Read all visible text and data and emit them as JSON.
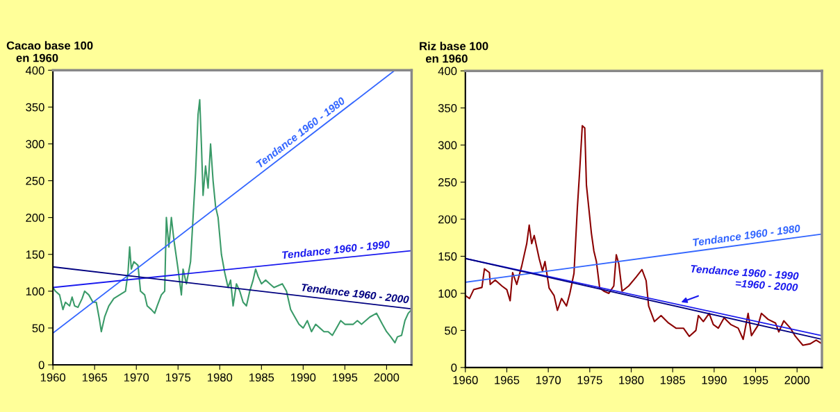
{
  "chart_data": [
    {
      "type": "line",
      "ylabel": "Cacao base 100\n   en 1960",
      "xlim": [
        1960,
        2003
      ],
      "xticks": [
        1960,
        1965,
        1970,
        1975,
        1980,
        1985,
        1990,
        1995,
        2000
      ],
      "ylim": [
        0,
        400
      ],
      "yticks": [
        0,
        50,
        100,
        150,
        200,
        250,
        300,
        350,
        400
      ],
      "grid": false,
      "legend": false,
      "series": [
        {
          "color": "#3a9a68",
          "x": [
            1960,
            1960.3,
            1960.8,
            1961.2,
            1961.5,
            1962,
            1962.3,
            1962.6,
            1963,
            1963.5,
            1963.8,
            1964.3,
            1964.8,
            1965.2,
            1965.6,
            1965.8,
            1966.2,
            1966.7,
            1967.3,
            1968,
            1968.7,
            1969,
            1969.2,
            1969.4,
            1969.7,
            1970.2,
            1970.5,
            1971,
            1971.3,
            1971.8,
            1972.2,
            1972.5,
            1973,
            1973.4,
            1973.6,
            1973.9,
            1974.2,
            1974.5,
            1975,
            1975.4,
            1975.6,
            1976,
            1976.5,
            1976.8,
            1977.1,
            1977.4,
            1977.6,
            1977.8,
            1978,
            1978.3,
            1978.6,
            1978.9,
            1979.2,
            1979.5,
            1979.8,
            1980.2,
            1980.6,
            1981,
            1981.3,
            1981.6,
            1982,
            1982.4,
            1982.8,
            1983.2,
            1983.6,
            1984,
            1984.3,
            1984.6,
            1985,
            1985.5,
            1986,
            1986.5,
            1987.5,
            1988,
            1988.5,
            1989,
            1989.5,
            1990,
            1990.5,
            1991,
            1991.5,
            1992,
            1992.5,
            1993,
            1993.5,
            1994,
            1994.5,
            1995,
            1996,
            1996.5,
            1997,
            1998,
            1998.8,
            1999.5,
            2000,
            2000.5,
            2001,
            2001.3,
            2001.8,
            2002.2,
            2002.6,
            2003
          ],
          "values": [
            105,
            100,
            95,
            75,
            85,
            80,
            92,
            80,
            78,
            90,
            100,
            95,
            85,
            85,
            60,
            45,
            65,
            80,
            90,
            95,
            100,
            125,
            160,
            130,
            140,
            135,
            100,
            95,
            80,
            75,
            70,
            80,
            95,
            100,
            200,
            160,
            200,
            170,
            130,
            95,
            130,
            110,
            140,
            200,
            260,
            340,
            360,
            300,
            230,
            270,
            240,
            300,
            250,
            215,
            200,
            150,
            125,
            105,
            115,
            80,
            110,
            100,
            85,
            80,
            100,
            115,
            130,
            120,
            110,
            115,
            110,
            105,
            110,
            100,
            75,
            65,
            55,
            50,
            60,
            45,
            55,
            50,
            45,
            45,
            40,
            50,
            60,
            55,
            55,
            60,
            55,
            65,
            70,
            55,
            45,
            38,
            30,
            38,
            40,
            60,
            70,
            75
          ]
        },
        {
          "name": "Tendance 1960 - 1980",
          "color": "#3366ff",
          "x": [
            1960,
            2001
          ],
          "values": [
            43,
            400
          ]
        },
        {
          "name": "Tendance 1960 - 1990",
          "color": "#1a1aee",
          "x": [
            1960,
            2003
          ],
          "values": [
            105,
            155
          ]
        },
        {
          "name": "Tendance 1960 - 2000",
          "color": "#000080",
          "x": [
            1960,
            2003
          ],
          "values": [
            133,
            76
          ]
        }
      ]
    },
    {
      "type": "line",
      "ylabel": "Riz base 100\n  en 1960",
      "xlim": [
        1960,
        2003
      ],
      "xticks": [
        1960,
        1965,
        1970,
        1975,
        1980,
        1985,
        1990,
        1995,
        2000
      ],
      "ylim": [
        0,
        400
      ],
      "yticks": [
        0,
        50,
        100,
        150,
        200,
        250,
        300,
        350,
        400
      ],
      "grid": false,
      "legend": false,
      "annotations": [
        {
          "text": "Tendance 1960 - 1990\n=1960 - 2000",
          "x": 1985.8,
          "y": 87
        }
      ],
      "series": [
        {
          "color": "#8b0000",
          "x": [
            1960,
            1960.5,
            1961,
            1962,
            1962.3,
            1962.9,
            1963,
            1963.6,
            1964.4,
            1965,
            1965.4,
            1965.7,
            1966.2,
            1966.8,
            1967.4,
            1967.7,
            1968,
            1968.3,
            1968.9,
            1969.3,
            1969.6,
            1970.1,
            1970.7,
            1971.1,
            1971.6,
            1972.2,
            1972.6,
            1973.1,
            1973.5,
            1973.8,
            1974.1,
            1974.4,
            1974.6,
            1975.2,
            1975.5,
            1975.8,
            1976.2,
            1976.7,
            1977.3,
            1977.9,
            1978.2,
            1978.5,
            1978.9,
            1979.7,
            1980.6,
            1981.3,
            1981.8,
            1982.1,
            1982.8,
            1983.6,
            1984.5,
            1985.4,
            1986.3,
            1987,
            1987.8,
            1988.1,
            1988.7,
            1989.4,
            1989.9,
            1990.5,
            1991.2,
            1992,
            1992.9,
            1993.5,
            1994.1,
            1994.5,
            1995.3,
            1995.7,
            1996.5,
            1997.4,
            1997.8,
            1998.4,
            1999.2,
            1999.8,
            2000.7,
            2001.6,
            2002.3,
            2003
          ],
          "values": [
            97,
            93,
            105,
            108,
            133,
            128,
            112,
            118,
            110,
            105,
            90,
            128,
            112,
            137,
            167,
            192,
            167,
            178,
            147,
            130,
            143,
            107,
            97,
            77,
            93,
            83,
            100,
            127,
            214,
            268,
            326,
            323,
            246,
            181,
            157,
            143,
            107,
            103,
            100,
            110,
            152,
            140,
            103,
            110,
            122,
            132,
            117,
            83,
            62,
            70,
            60,
            53,
            53,
            42,
            50,
            70,
            62,
            73,
            58,
            53,
            67,
            58,
            53,
            38,
            73,
            43,
            57,
            73,
            65,
            60,
            48,
            63,
            53,
            42,
            30,
            32,
            37,
            32
          ]
        },
        {
          "name": "Tendance 1960 - 1980",
          "color": "#3366ff",
          "x": [
            1960,
            2003
          ],
          "values": [
            115,
            180
          ]
        },
        {
          "color": "#1a1aee",
          "x": [
            1960,
            2003
          ],
          "values": [
            147,
            43
          ]
        },
        {
          "color": "#000080",
          "x": [
            1960,
            2003
          ],
          "values": [
            147,
            38
          ]
        }
      ]
    }
  ]
}
